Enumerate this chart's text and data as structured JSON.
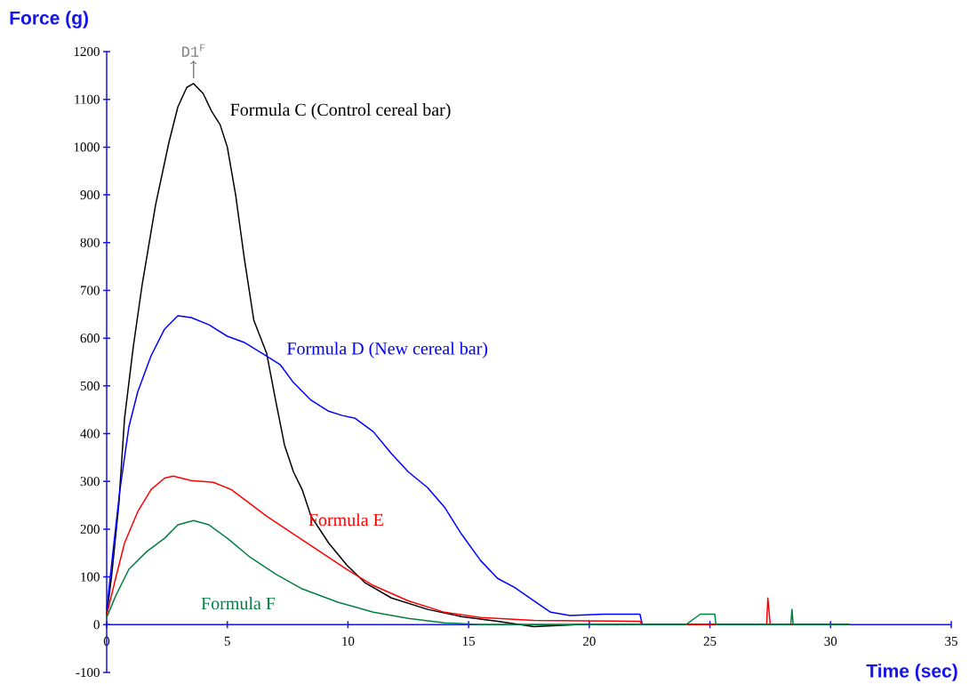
{
  "chart_data": {
    "type": "line",
    "xlabel": "Time (sec)",
    "ylabel": "Force (g)",
    "xlim": [
      0,
      35
    ],
    "ylim": [
      -100,
      1200
    ],
    "xticks": [
      0,
      5,
      10,
      15,
      20,
      25,
      30,
      35
    ],
    "yticks": [
      -100,
      0,
      100,
      200,
      300,
      400,
      500,
      600,
      700,
      800,
      900,
      1000,
      1100,
      1200
    ],
    "grid": false,
    "legend": false,
    "marker": "none",
    "line_style": "solid",
    "annotations": [
      {
        "text": "D1$^{F}$",
        "x": 3.6,
        "y": 1133
      }
    ],
    "series": [
      {
        "name": "Formula C (Control cereal bar)",
        "color": "#000000",
        "x": [
          0,
          0.2,
          0.5,
          0.74,
          1.1,
          1.47,
          2.03,
          2.58,
          2.95,
          3.32,
          3.6,
          4.0,
          4.35,
          4.7,
          5.0,
          5.35,
          5.7,
          6.1,
          6.63,
          7.0,
          7.37,
          7.74,
          8.1,
          8.47,
          9.2,
          9.95,
          10.7,
          11.8,
          13.3,
          14.7,
          16.2,
          17.7,
          19.5,
          22.1,
          30.8
        ],
        "values": [
          20,
          100,
          250,
          432,
          581,
          712,
          880,
          1010,
          1084,
          1125,
          1133,
          1112,
          1075,
          1047,
          1000,
          898,
          768,
          637,
          568,
          470,
          376,
          320,
          283,
          227,
          171,
          125,
          88,
          56,
          32,
          17,
          7,
          -4,
          0,
          0,
          0
        ]
      },
      {
        "name": "Formula D (New cereal bar)",
        "color": "#0000ff",
        "x": [
          0,
          0.3,
          0.55,
          0.92,
          1.29,
          1.84,
          2.4,
          2.95,
          3.5,
          4.24,
          5.0,
          5.7,
          6.45,
          7.2,
          7.74,
          8.47,
          9.2,
          9.76,
          10.3,
          11.05,
          11.8,
          12.5,
          13.3,
          14.0,
          14.7,
          15.5,
          16.2,
          16.9,
          17.7,
          18.4,
          19.2,
          20.6,
          22.1,
          22.2,
          30.8
        ],
        "values": [
          30,
          171,
          283,
          414,
          488,
          563,
          619,
          647,
          643,
          628,
          604,
          591,
          568,
          544,
          507,
          470,
          447,
          438,
          432,
          404,
          358,
          320,
          287,
          246,
          190,
          134,
          97,
          78,
          50,
          26,
          19,
          22,
          22,
          0,
          0
        ]
      },
      {
        "name": "Formula E",
        "color": "#ff0000",
        "x": [
          0,
          0.37,
          0.74,
          1.29,
          1.84,
          2.4,
          2.76,
          3.5,
          4.42,
          5.16,
          5.9,
          6.63,
          7.74,
          8.84,
          9.95,
          11.05,
          12.5,
          14.0,
          15.5,
          17.7,
          22.1,
          22.2,
          27.35,
          27.4,
          27.5,
          30.8
        ],
        "values": [
          20,
          97,
          171,
          237,
          283,
          307,
          311,
          302,
          298,
          283,
          255,
          227,
          190,
          153,
          116,
          82,
          50,
          26,
          15,
          9,
          7,
          0,
          0,
          56,
          0,
          0
        ]
      },
      {
        "name": "Formula F",
        "color": "#008040",
        "x": [
          0,
          0.37,
          0.92,
          1.66,
          2.4,
          2.95,
          3.6,
          4.24,
          5.0,
          5.9,
          7.0,
          8.1,
          9.58,
          11.05,
          12.5,
          14.0,
          15.5,
          24.0,
          24.6,
          25.2,
          25.25,
          28.35,
          28.4,
          28.45,
          30.8
        ],
        "values": [
          15,
          60,
          116,
          153,
          181,
          209,
          218,
          209,
          181,
          143,
          106,
          75,
          47,
          26,
          13,
          4,
          0,
          0,
          22,
          22,
          0,
          0,
          32,
          0,
          0
        ]
      }
    ]
  }
}
